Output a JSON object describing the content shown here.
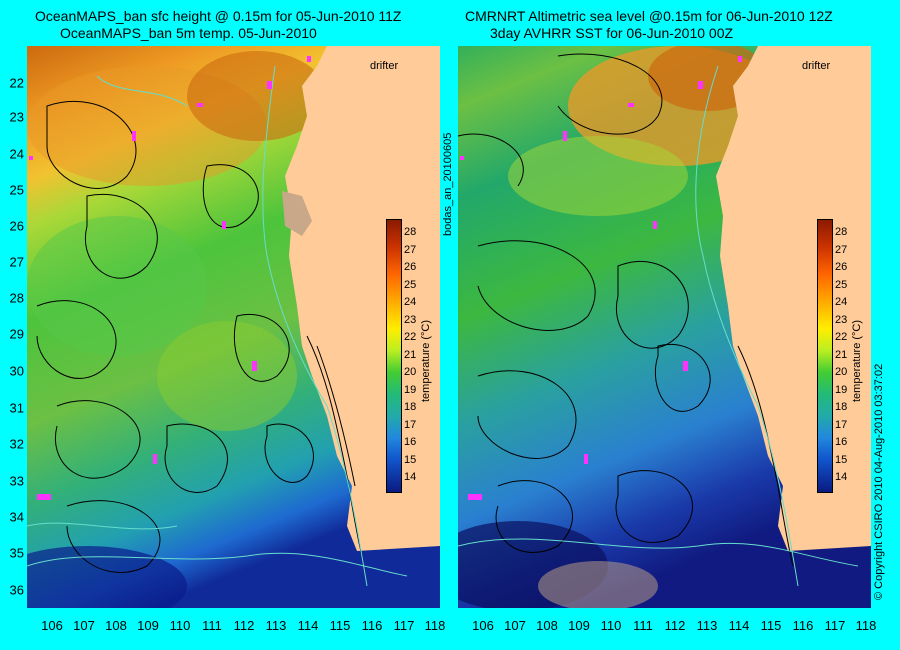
{
  "left_panel": {
    "title_line1": "OceanMAPS_ban sfc height @ 0.15m for 05-Jun-2010 11Z",
    "title_line2": "OceanMAPS_ban 5m temp. 05-Jun-2010",
    "drifter_label": "drifter",
    "colorbar_label": "temperature (°C)"
  },
  "right_panel": {
    "title_line1": "CMRNRT Altimetric sea level  @0.15m  for 06-Jun-2010 12Z",
    "title_line2": "3day AVHRR SST for 06-Jun-2010 00Z",
    "drifter_label": "drifter",
    "colorbar_label": "temperature (°C)"
  },
  "side_label_middle": "bodas_an_20100605",
  "side_label_right": "© Copyright CSIRO 2010    04-Aug-2010 03:37:02",
  "x_ticks": [
    "106",
    "107",
    "108",
    "109",
    "110",
    "111",
    "112",
    "113",
    "114",
    "115",
    "116",
    "117",
    "118"
  ],
  "y_ticks": [
    "22",
    "23",
    "24",
    "25",
    "26",
    "27",
    "28",
    "29",
    "30",
    "31",
    "32",
    "33",
    "34",
    "35",
    "36"
  ],
  "colorbar_ticks": [
    "28",
    "27",
    "26",
    "25",
    "24",
    "23",
    "22",
    "21",
    "20",
    "19",
    "18",
    "17",
    "16",
    "15",
    "14"
  ],
  "colors": {
    "background": "#00ffff",
    "land": "#ffcc99",
    "contour": "#000000",
    "bathymetry": "#66ddcc",
    "drifter": "#ff33ff"
  }
}
